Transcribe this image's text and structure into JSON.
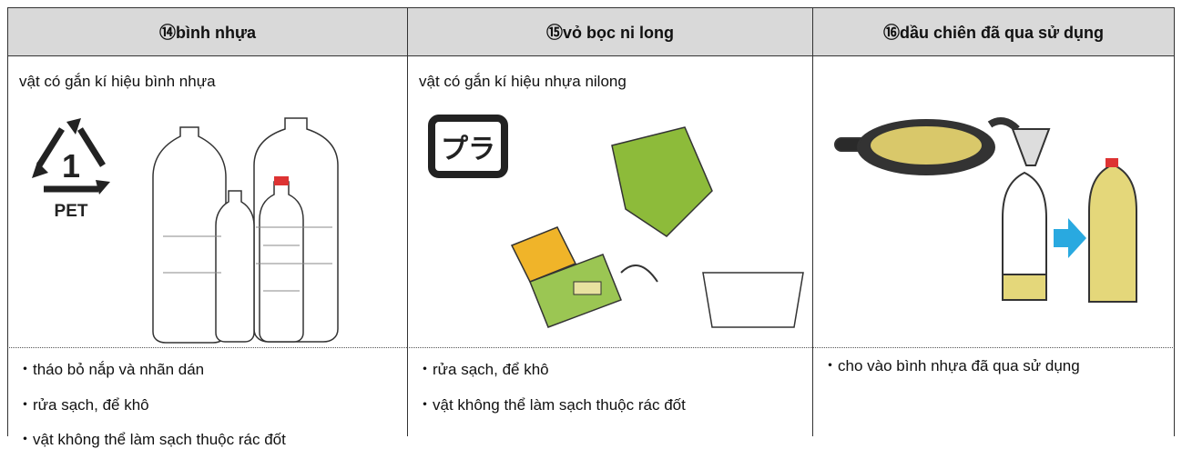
{
  "table": {
    "headers": [
      "⑭bình nhựa",
      "⑮vỏ bọc ni long",
      "⑯dầu chiên đã qua sử dụng"
    ],
    "descriptions": [
      "vật có gắn kí hiệu bình nhựa",
      "vật có gắn kí hiệu nhựa nilong"
    ],
    "pet_label": "PET",
    "instructions": [
      [
        "・tháo bỏ nắp và nhãn dán",
        "・rửa sạch, để khô",
        "・vật không thể làm sạch thuộc rác đốt"
      ],
      [
        "・rửa sạch, để khô",
        "・vật không thể làm sạch thuộc rác đốt"
      ],
      [
        "・cho vào bình nhựa đã qua sử dụng"
      ]
    ]
  }
}
